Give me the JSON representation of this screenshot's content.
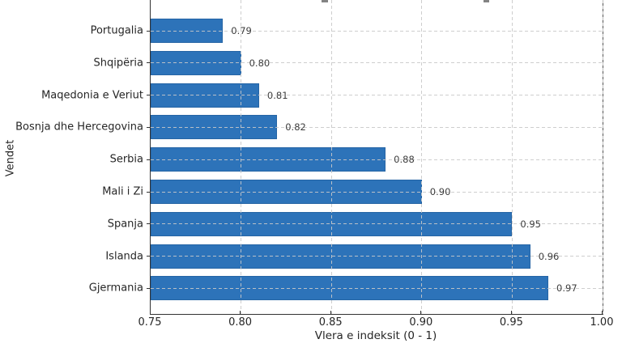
{
  "chart_data": {
    "type": "bar",
    "orientation": "horizontal",
    "categories": [
      "Portugalia",
      "Shqipëria",
      "Maqedonia e Veriut",
      "Bosnja dhe Hercegovina",
      "Serbia",
      "Mali i Zi",
      "Spanja",
      "Islanda",
      "Gjermania"
    ],
    "values": [
      0.79,
      0.8,
      0.81,
      0.82,
      0.88,
      0.9,
      0.95,
      0.96,
      0.97
    ],
    "value_labels": [
      "0.79",
      "0.80",
      "0.81",
      "0.82",
      "0.88",
      "0.90",
      "0.95",
      "0.96",
      "0.97"
    ],
    "xlabel": "Vlera e indeksit (0 - 1)",
    "ylabel": "Vendet",
    "xlim": [
      0.75,
      1.0
    ],
    "x_ticks": [
      0.75,
      0.8,
      0.85,
      0.9,
      0.95,
      1.0
    ],
    "x_tick_labels": [
      "0.75",
      "0.80",
      "0.85",
      "0.90",
      "0.95",
      "1.00"
    ],
    "grid": {
      "style": "dashed",
      "axes": "both",
      "color": "#c9c9c9"
    },
    "legend": null,
    "bar_color": "#2d73b9",
    "note": "chart title clipped off above top edge of screenshot"
  }
}
